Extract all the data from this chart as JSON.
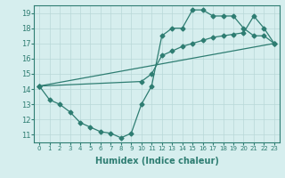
{
  "line1_x": [
    0,
    1,
    2,
    3,
    4,
    5,
    6,
    7,
    8,
    9,
    10,
    11,
    12,
    13,
    14,
    15,
    16,
    17,
    18,
    19,
    20,
    21,
    22,
    23
  ],
  "line1_y": [
    14.2,
    13.3,
    13.0,
    12.5,
    11.8,
    11.5,
    11.2,
    11.1,
    10.8,
    11.1,
    13.0,
    14.2,
    17.5,
    18.0,
    18.0,
    19.2,
    19.2,
    18.8,
    18.8,
    18.8,
    18.0,
    17.5,
    17.5,
    17.0
  ],
  "line2_x": [
    0,
    23
  ],
  "line2_y": [
    14.2,
    17.0
  ],
  "line3_x": [
    0,
    10,
    11,
    12,
    13,
    14,
    15,
    16,
    17,
    18,
    19,
    20,
    21,
    22,
    23
  ],
  "line3_y": [
    14.2,
    14.5,
    15.0,
    16.2,
    16.5,
    16.8,
    17.0,
    17.2,
    17.4,
    17.5,
    17.6,
    17.7,
    18.8,
    18.0,
    17.0
  ],
  "line_color": "#2e7d72",
  "bg_color": "#d6eeee",
  "grid_color": "#b8d8d8",
  "xlabel": "Humidex (Indice chaleur)",
  "xlabel_fontsize": 7,
  "tick_fontsize": 6,
  "xlim": [
    -0.5,
    23.5
  ],
  "ylim": [
    10.5,
    19.5
  ],
  "yticks": [
    11,
    12,
    13,
    14,
    15,
    16,
    17,
    18,
    19
  ],
  "xticks": [
    0,
    1,
    2,
    3,
    4,
    5,
    6,
    7,
    8,
    9,
    10,
    11,
    12,
    13,
    14,
    15,
    16,
    17,
    18,
    19,
    20,
    21,
    22,
    23
  ],
  "marker_size": 2.5,
  "lw": 0.9
}
